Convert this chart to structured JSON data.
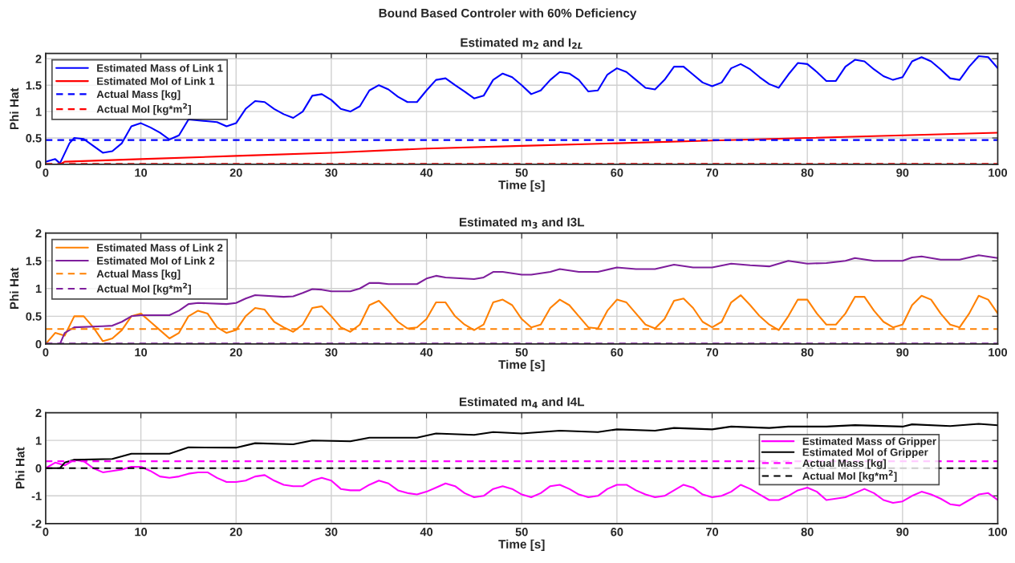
{
  "chart_data": [
    {
      "type": "line",
      "title": "Bound Based Controler with 60% Deficiency",
      "subtitle": "Estimated m$_{2}$ and I$_{2L}$",
      "xlabel": "Time [s]",
      "ylabel": "Phi Hat",
      "xlim": [
        0,
        100
      ],
      "xticks": [
        0,
        10,
        20,
        30,
        40,
        50,
        60,
        70,
        80,
        90,
        100
      ],
      "ylim": [
        0,
        2.1
      ],
      "yticks": [
        0,
        0.5,
        1,
        1.5,
        2
      ],
      "grid": true,
      "legend": "top left",
      "series": [
        {
          "name": "Estimated Mass of Link 1",
          "color": "#0000ff",
          "line_style": "solid",
          "x": [
            0,
            1,
            1.5,
            2.5,
            3,
            4,
            5,
            6,
            7,
            8,
            9,
            10,
            11,
            12,
            13,
            14,
            15,
            16,
            17,
            18,
            19,
            20,
            21,
            22,
            23,
            24,
            25,
            26,
            27,
            28,
            29,
            30,
            31,
            32,
            33,
            34,
            35,
            36,
            37,
            38,
            39,
            40,
            41,
            42,
            43,
            44,
            45,
            46,
            47,
            48,
            49,
            50,
            51,
            52,
            53,
            54,
            55,
            56,
            57,
            58,
            59,
            60,
            61,
            62,
            63,
            64,
            65,
            66,
            67,
            68,
            69,
            70,
            71,
            72,
            73,
            74,
            75,
            76,
            77,
            78,
            79,
            80,
            81,
            82,
            83,
            84,
            85,
            86,
            87,
            88,
            89,
            90,
            91,
            92,
            93,
            94,
            95,
            96,
            97,
            98,
            99,
            100
          ],
          "values": [
            0.05,
            0.1,
            0.02,
            0.4,
            0.5,
            0.48,
            0.35,
            0.22,
            0.25,
            0.4,
            0.72,
            0.78,
            0.7,
            0.6,
            0.47,
            0.55,
            0.85,
            null,
            null,
            0.8,
            0.72,
            0.78,
            1.05,
            1.2,
            1.18,
            1.05,
            0.95,
            0.88,
            1.0,
            1.3,
            1.33,
            1.22,
            1.05,
            1.0,
            1.1,
            1.4,
            1.5,
            1.42,
            1.28,
            1.18,
            1.18,
            1.4,
            1.6,
            1.63,
            1.5,
            1.38,
            1.25,
            1.3,
            1.6,
            1.72,
            1.65,
            1.5,
            1.33,
            1.4,
            1.6,
            1.75,
            1.72,
            1.6,
            1.38,
            1.4,
            1.7,
            1.82,
            1.75,
            1.6,
            1.45,
            1.42,
            1.6,
            1.85,
            1.85,
            1.7,
            1.55,
            1.48,
            1.55,
            1.82,
            1.9,
            1.8,
            1.65,
            1.52,
            1.45,
            1.7,
            1.92,
            1.9,
            1.75,
            1.58,
            1.58,
            1.85,
            1.98,
            1.95,
            1.8,
            1.67,
            1.6,
            1.65,
            1.95,
            2.03,
            1.95,
            1.8,
            1.63,
            1.6,
            1.85,
            2.05,
            2.03,
            1.82
          ]
        },
        {
          "name": "Estimated MoI of Link 1",
          "color": "#ff0000",
          "line_style": "solid",
          "x": [
            0,
            1.5,
            2,
            10,
            20,
            30,
            40,
            50,
            60,
            70,
            80,
            90,
            100
          ],
          "values": [
            0,
            0,
            0.05,
            0.1,
            0.16,
            0.22,
            0.3,
            0.35,
            0.4,
            0.45,
            0.5,
            0.55,
            0.6
          ]
        },
        {
          "name": "Actual Mass [kg]",
          "color": "#0000ff",
          "line_style": "dashed",
          "x": [
            0,
            100
          ],
          "values": [
            0.46,
            0.46
          ]
        },
        {
          "name": "Actual MoI [kg*m$^{2}$]",
          "color": "#ff0000",
          "line_style": "dashed",
          "x": [
            0,
            100
          ],
          "values": [
            0.01,
            0.01
          ]
        }
      ]
    },
    {
      "type": "line",
      "title": "Estimated m$_{3}$ and I3L",
      "xlabel": "Time [s]",
      "ylabel": "Phi Hat",
      "xlim": [
        0,
        100
      ],
      "xticks": [
        0,
        10,
        20,
        30,
        40,
        50,
        60,
        70,
        80,
        90,
        100
      ],
      "ylim": [
        0,
        2
      ],
      "yticks": [
        0,
        0.5,
        1,
        1.5,
        2
      ],
      "grid": true,
      "legend": "top left",
      "series": [
        {
          "name": "Estimated Mass of Link 2",
          "color": "#ff8000",
          "line_style": "solid",
          "x": [
            0,
            1,
            2,
            3,
            4,
            5,
            6,
            7,
            8,
            9,
            10,
            11,
            12,
            13,
            14,
            15,
            16,
            17,
            18,
            19,
            20,
            21,
            22,
            23,
            24,
            25,
            26,
            27,
            28,
            29,
            30,
            31,
            32,
            33,
            34,
            35,
            36,
            37,
            38,
            39,
            40,
            41,
            42,
            43,
            44,
            45,
            46,
            47,
            48,
            49,
            50,
            51,
            52,
            53,
            54,
            55,
            56,
            57,
            58,
            59,
            60,
            61,
            62,
            63,
            64,
            65,
            66,
            67,
            68,
            69,
            70,
            71,
            72,
            73,
            74,
            75,
            76,
            77,
            78,
            79,
            80,
            81,
            82,
            83,
            84,
            85,
            86,
            87,
            88,
            89,
            90,
            91,
            92,
            93,
            94,
            95,
            96,
            97,
            98,
            99,
            100
          ],
          "values": [
            0,
            0.2,
            0.15,
            0.5,
            0.5,
            0.3,
            0.05,
            0.1,
            0.25,
            0.5,
            0.55,
            0.4,
            0.25,
            0.1,
            0.2,
            0.5,
            0.6,
            0.55,
            0.3,
            0.2,
            0.25,
            0.5,
            0.65,
            0.62,
            0.4,
            0.3,
            0.22,
            0.35,
            0.65,
            0.68,
            0.5,
            0.3,
            0.22,
            0.35,
            0.7,
            0.78,
            0.6,
            0.4,
            0.28,
            0.3,
            0.45,
            0.75,
            0.75,
            0.5,
            0.35,
            0.25,
            0.35,
            0.75,
            0.8,
            0.7,
            0.45,
            0.3,
            0.35,
            0.65,
            0.8,
            0.7,
            0.5,
            0.3,
            0.28,
            0.6,
            0.8,
            0.75,
            0.55,
            0.35,
            0.28,
            0.45,
            0.78,
            0.82,
            0.65,
            0.4,
            0.3,
            0.4,
            0.75,
            0.88,
            0.7,
            0.5,
            0.35,
            0.25,
            0.5,
            0.8,
            0.8,
            0.55,
            0.35,
            0.35,
            0.55,
            0.85,
            0.85,
            0.6,
            0.4,
            0.3,
            0.35,
            0.7,
            0.87,
            0.8,
            0.55,
            0.35,
            0.3,
            0.55,
            0.87,
            0.8,
            0.55
          ]
        },
        {
          "name": "Estimated MoI of Link 2",
          "color": "#7e1e9c",
          "line_style": "solid",
          "x": [
            0,
            1.5,
            2,
            3,
            6,
            7,
            8,
            9,
            10,
            13,
            14,
            15,
            16,
            19,
            20,
            21,
            22,
            25,
            26,
            27,
            28,
            29,
            30,
            32,
            33,
            34,
            35,
            36,
            39,
            40,
            41,
            42,
            45,
            46,
            47,
            48,
            50,
            51,
            53,
            54,
            56,
            58,
            60,
            62,
            64,
            66,
            68,
            70,
            72,
            74,
            76,
            78,
            80,
            82,
            84,
            85,
            87,
            90,
            91,
            92,
            94,
            96,
            98,
            100
          ],
          "values": [
            0,
            0,
            0.2,
            0.3,
            0.32,
            0.33,
            0.4,
            0.5,
            0.52,
            0.52,
            0.6,
            0.72,
            0.74,
            0.72,
            0.74,
            0.82,
            0.88,
            0.85,
            0.86,
            0.92,
            0.99,
            0.98,
            0.95,
            0.95,
            1.0,
            1.1,
            1.1,
            1.08,
            1.08,
            1.18,
            1.23,
            1.2,
            1.17,
            1.2,
            1.3,
            1.3,
            1.25,
            1.25,
            1.3,
            1.35,
            1.3,
            1.3,
            1.38,
            1.35,
            1.35,
            1.43,
            1.38,
            1.38,
            1.45,
            1.42,
            1.4,
            1.5,
            1.45,
            1.46,
            1.5,
            1.55,
            1.5,
            1.5,
            1.56,
            1.58,
            1.52,
            1.52,
            1.6,
            1.55
          ]
        },
        {
          "name": "Actual Mass [kg]",
          "color": "#ff8000",
          "line_style": "dashed",
          "x": [
            0,
            100
          ],
          "values": [
            0.27,
            0.27
          ]
        },
        {
          "name": "Actual MoI [kg*m$^{2}$]",
          "color": "#7e1e9c",
          "line_style": "dashed",
          "x": [
            0,
            100
          ],
          "values": [
            0.01,
            0.01
          ]
        }
      ]
    },
    {
      "type": "line",
      "title": "Estimated m$_{4}$ and I4L",
      "xlabel": "Time [s]",
      "ylabel": "Phi Hat",
      "xlim": [
        0,
        100
      ],
      "xticks": [
        0,
        10,
        20,
        30,
        40,
        50,
        60,
        70,
        80,
        90,
        100
      ],
      "ylim": [
        -2,
        2
      ],
      "yticks": [
        -2,
        -1,
        0,
        1,
        2
      ],
      "grid": true,
      "legend": "center right",
      "series": [
        {
          "name": "Estimated Mass of Gripper",
          "color": "#ff00ff",
          "line_style": "solid",
          "x": [
            0,
            1,
            2,
            3,
            4,
            5,
            6,
            7,
            8,
            9,
            10,
            11,
            12,
            13,
            14,
            15,
            16,
            17,
            18,
            19,
            20,
            21,
            22,
            23,
            24,
            25,
            26,
            27,
            28,
            29,
            30,
            31,
            32,
            33,
            34,
            35,
            36,
            37,
            38,
            39,
            40,
            41,
            42,
            43,
            44,
            45,
            46,
            47,
            48,
            49,
            50,
            51,
            52,
            53,
            54,
            55,
            56,
            57,
            58,
            59,
            60,
            61,
            62,
            63,
            64,
            65,
            66,
            67,
            68,
            69,
            70,
            71,
            72,
            73,
            74,
            75,
            76,
            77,
            78,
            79,
            80,
            81,
            82,
            83,
            84,
            85,
            86,
            87,
            88,
            89,
            90,
            91,
            92,
            93,
            94,
            95,
            96,
            97,
            98,
            99,
            100
          ],
          "values": [
            0,
            0.2,
            0.1,
            0.3,
            0.25,
            0,
            -0.15,
            -0.1,
            -0.05,
            0.05,
            0.05,
            -0.1,
            -0.3,
            -0.35,
            -0.3,
            -0.2,
            -0.15,
            -0.15,
            -0.35,
            -0.5,
            -0.5,
            -0.45,
            -0.3,
            -0.25,
            -0.45,
            -0.6,
            -0.65,
            -0.65,
            -0.45,
            -0.35,
            -0.45,
            -0.75,
            -0.8,
            -0.8,
            -0.6,
            -0.45,
            -0.55,
            -0.8,
            -0.9,
            -0.95,
            -0.85,
            -0.7,
            -0.55,
            -0.65,
            -0.9,
            -1.05,
            -1.0,
            -0.75,
            -0.65,
            -0.75,
            -0.95,
            -1.05,
            -0.9,
            -0.65,
            -0.6,
            -0.75,
            -0.95,
            -1.05,
            -1.0,
            -0.75,
            -0.6,
            -0.6,
            -0.8,
            -0.95,
            -1.05,
            -1.0,
            -0.8,
            -0.6,
            -0.7,
            -0.95,
            -1.05,
            -1.0,
            -0.85,
            -0.6,
            -0.75,
            -0.95,
            -1.15,
            -1.15,
            -1.0,
            -0.8,
            -0.7,
            -0.85,
            -1.15,
            -1.1,
            -1.05,
            -0.9,
            -0.75,
            -0.9,
            -1.15,
            -1.25,
            -1.2,
            -1.0,
            -0.85,
            -0.95,
            -1.1,
            -1.3,
            -1.35,
            -1.15,
            -0.95,
            -0.9,
            -1.15
          ]
        },
        {
          "name": "Estimated MoI of Gripper",
          "color": "#000000",
          "line_style": "solid",
          "x": [
            0,
            1.5,
            2,
            3,
            7,
            9,
            13,
            15,
            20,
            22,
            26,
            28,
            32,
            34,
            39,
            41,
            45,
            47,
            50,
            54,
            58,
            60,
            64,
            66,
            70,
            72,
            76,
            78,
            82,
            85,
            90,
            91,
            95,
            98,
            100
          ],
          "values": [
            0,
            0,
            0.2,
            0.3,
            0.33,
            0.52,
            0.52,
            0.75,
            0.74,
            0.9,
            0.86,
            1.0,
            0.97,
            1.1,
            1.1,
            1.25,
            1.2,
            1.3,
            1.25,
            1.35,
            1.3,
            1.4,
            1.35,
            1.45,
            1.4,
            1.5,
            1.45,
            1.5,
            1.5,
            1.55,
            1.5,
            1.58,
            1.52,
            1.6,
            1.55
          ]
        },
        {
          "name": "Actual Mass [kg]",
          "color": "#ff00ff",
          "line_style": "dashed",
          "x": [
            0,
            100
          ],
          "values": [
            0.25,
            0.25
          ]
        },
        {
          "name": "Actual MoI [kg*m$^{2}$]",
          "color": "#000000",
          "line_style": "dashed",
          "x": [
            0,
            100
          ],
          "values": [
            0,
            0
          ]
        }
      ]
    }
  ]
}
